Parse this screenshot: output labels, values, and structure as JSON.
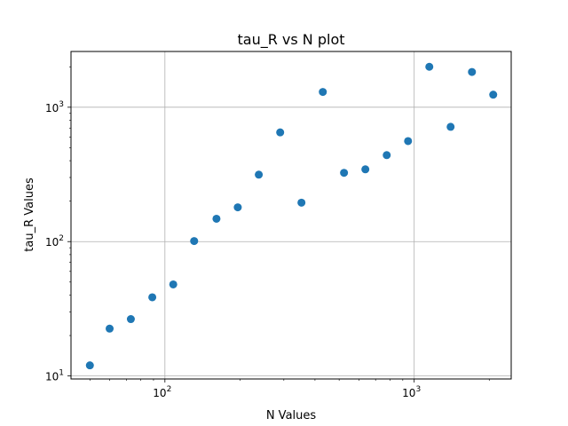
{
  "chart_data": {
    "type": "scatter",
    "title": "tau_R vs N plot",
    "xlabel": "N Values",
    "ylabel": "tau_R Values",
    "xscale": "log",
    "yscale": "log",
    "xlim": [
      42,
      2450
    ],
    "ylim": [
      9.5,
      2600
    ],
    "grid": "major",
    "marker_color": "#1f77b4",
    "x_ticks": [
      {
        "base": "10",
        "exp": "2",
        "value": 100
      },
      {
        "base": "10",
        "exp": "3",
        "value": 1000
      }
    ],
    "y_ticks": [
      {
        "base": "10",
        "exp": "1",
        "value": 10
      },
      {
        "base": "10",
        "exp": "2",
        "value": 100
      },
      {
        "base": "10",
        "exp": "3",
        "value": 1000
      }
    ],
    "series": [
      {
        "points": [
          {
            "x": 50,
            "y": 12
          },
          {
            "x": 60,
            "y": 22.5
          },
          {
            "x": 73,
            "y": 26.5
          },
          {
            "x": 89,
            "y": 38.5
          },
          {
            "x": 108,
            "y": 48
          },
          {
            "x": 131,
            "y": 101
          },
          {
            "x": 161,
            "y": 148
          },
          {
            "x": 196,
            "y": 180
          },
          {
            "x": 238,
            "y": 315
          },
          {
            "x": 290,
            "y": 650
          },
          {
            "x": 353,
            "y": 195
          },
          {
            "x": 430,
            "y": 1300
          },
          {
            "x": 523,
            "y": 325
          },
          {
            "x": 637,
            "y": 345
          },
          {
            "x": 776,
            "y": 440
          },
          {
            "x": 945,
            "y": 560
          },
          {
            "x": 1150,
            "y": 2000
          },
          {
            "x": 1400,
            "y": 715
          },
          {
            "x": 1705,
            "y": 1830
          },
          {
            "x": 2075,
            "y": 1240
          }
        ]
      }
    ]
  }
}
